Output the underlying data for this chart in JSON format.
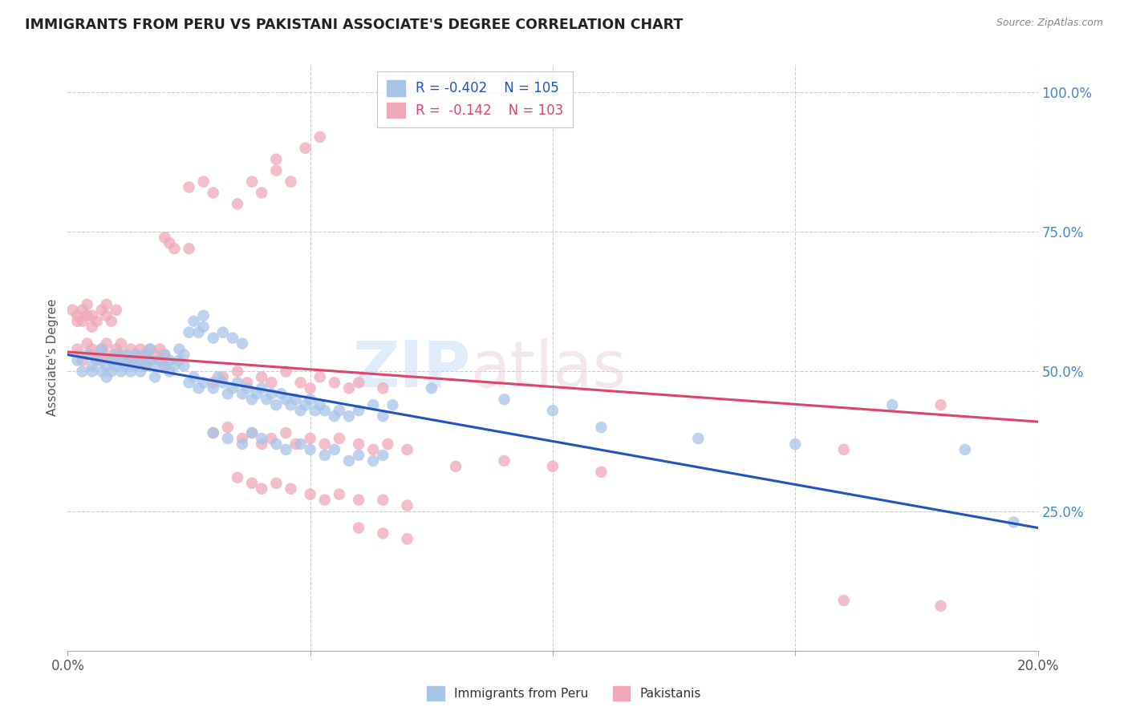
{
  "title": "IMMIGRANTS FROM PERU VS PAKISTANI ASSOCIATE'S DEGREE CORRELATION CHART",
  "source": "Source: ZipAtlas.com",
  "ylabel": "Associate's Degree",
  "legend_blue_label": "Immigrants from Peru",
  "legend_pink_label": "Pakistanis",
  "legend_blue_r_val": "-0.402",
  "legend_blue_n_val": "105",
  "legend_pink_r_val": "-0.142",
  "legend_pink_n_val": "103",
  "blue_color": "#a8c4e8",
  "pink_color": "#f0a8b8",
  "blue_line_color": "#2255bb",
  "pink_line_color": "#dd4466",
  "watermark_zip": "ZIP",
  "watermark_atlas": "atlas",
  "bg_color": "#ffffff",
  "grid_color": "#cccccc",
  "right_axis_color": "#4488cc",
  "title_color": "#222222",
  "blue_scatter": [
    [
      0.002,
      52
    ],
    [
      0.003,
      50
    ],
    [
      0.004,
      53
    ],
    [
      0.005,
      51
    ],
    [
      0.005,
      50
    ],
    [
      0.006,
      52
    ],
    [
      0.007,
      50
    ],
    [
      0.007,
      54
    ],
    [
      0.008,
      51
    ],
    [
      0.008,
      49
    ],
    [
      0.009,
      52
    ],
    [
      0.009,
      50
    ],
    [
      0.01,
      53
    ],
    [
      0.01,
      51
    ],
    [
      0.011,
      52
    ],
    [
      0.011,
      50
    ],
    [
      0.012,
      51
    ],
    [
      0.012,
      53
    ],
    [
      0.013,
      52
    ],
    [
      0.013,
      50
    ],
    [
      0.014,
      51
    ],
    [
      0.014,
      53
    ],
    [
      0.015,
      52
    ],
    [
      0.015,
      50
    ],
    [
      0.016,
      51
    ],
    [
      0.016,
      53
    ],
    [
      0.017,
      52
    ],
    [
      0.017,
      54
    ],
    [
      0.018,
      51
    ],
    [
      0.018,
      49
    ],
    [
      0.019,
      52
    ],
    [
      0.02,
      51
    ],
    [
      0.02,
      53
    ],
    [
      0.021,
      52
    ],
    [
      0.021,
      50
    ],
    [
      0.022,
      51
    ],
    [
      0.023,
      52
    ],
    [
      0.023,
      54
    ],
    [
      0.024,
      53
    ],
    [
      0.024,
      51
    ],
    [
      0.025,
      57
    ],
    [
      0.026,
      59
    ],
    [
      0.027,
      57
    ],
    [
      0.028,
      58
    ],
    [
      0.028,
      60
    ],
    [
      0.03,
      56
    ],
    [
      0.032,
      57
    ],
    [
      0.034,
      56
    ],
    [
      0.036,
      55
    ],
    [
      0.025,
      48
    ],
    [
      0.026,
      49
    ],
    [
      0.027,
      47
    ],
    [
      0.028,
      48
    ],
    [
      0.03,
      47
    ],
    [
      0.031,
      49
    ],
    [
      0.032,
      48
    ],
    [
      0.033,
      46
    ],
    [
      0.034,
      47
    ],
    [
      0.035,
      48
    ],
    [
      0.036,
      46
    ],
    [
      0.037,
      47
    ],
    [
      0.038,
      45
    ],
    [
      0.039,
      46
    ],
    [
      0.04,
      47
    ],
    [
      0.041,
      45
    ],
    [
      0.042,
      46
    ],
    [
      0.043,
      44
    ],
    [
      0.044,
      46
    ],
    [
      0.045,
      45
    ],
    [
      0.046,
      44
    ],
    [
      0.047,
      45
    ],
    [
      0.048,
      43
    ],
    [
      0.049,
      44
    ],
    [
      0.05,
      45
    ],
    [
      0.051,
      43
    ],
    [
      0.052,
      44
    ],
    [
      0.053,
      43
    ],
    [
      0.055,
      42
    ],
    [
      0.056,
      43
    ],
    [
      0.058,
      42
    ],
    [
      0.06,
      43
    ],
    [
      0.063,
      44
    ],
    [
      0.065,
      42
    ],
    [
      0.067,
      44
    ],
    [
      0.03,
      39
    ],
    [
      0.033,
      38
    ],
    [
      0.036,
      37
    ],
    [
      0.038,
      39
    ],
    [
      0.04,
      38
    ],
    [
      0.043,
      37
    ],
    [
      0.045,
      36
    ],
    [
      0.048,
      37
    ],
    [
      0.05,
      36
    ],
    [
      0.053,
      35
    ],
    [
      0.055,
      36
    ],
    [
      0.058,
      34
    ],
    [
      0.06,
      35
    ],
    [
      0.063,
      34
    ],
    [
      0.065,
      35
    ],
    [
      0.075,
      47
    ],
    [
      0.09,
      45
    ],
    [
      0.1,
      43
    ],
    [
      0.11,
      40
    ],
    [
      0.13,
      38
    ],
    [
      0.15,
      37
    ],
    [
      0.17,
      44
    ],
    [
      0.185,
      36
    ],
    [
      0.195,
      23
    ]
  ],
  "pink_scatter": [
    [
      0.002,
      54
    ],
    [
      0.003,
      52
    ],
    [
      0.004,
      55
    ],
    [
      0.005,
      53
    ],
    [
      0.005,
      54
    ],
    [
      0.006,
      52
    ],
    [
      0.007,
      54
    ],
    [
      0.007,
      52
    ],
    [
      0.008,
      53
    ],
    [
      0.008,
      55
    ],
    [
      0.009,
      52
    ],
    [
      0.01,
      54
    ],
    [
      0.01,
      52
    ],
    [
      0.011,
      53
    ],
    [
      0.011,
      55
    ],
    [
      0.012,
      52
    ],
    [
      0.013,
      54
    ],
    [
      0.013,
      52
    ],
    [
      0.014,
      53
    ],
    [
      0.015,
      54
    ],
    [
      0.015,
      52
    ],
    [
      0.016,
      53
    ],
    [
      0.016,
      51
    ],
    [
      0.017,
      52
    ],
    [
      0.017,
      54
    ],
    [
      0.018,
      53
    ],
    [
      0.019,
      52
    ],
    [
      0.019,
      54
    ],
    [
      0.02,
      53
    ],
    [
      0.02,
      51
    ],
    [
      0.001,
      61
    ],
    [
      0.002,
      59
    ],
    [
      0.002,
      60
    ],
    [
      0.003,
      61
    ],
    [
      0.003,
      59
    ],
    [
      0.004,
      60
    ],
    [
      0.004,
      62
    ],
    [
      0.005,
      60
    ],
    [
      0.005,
      58
    ],
    [
      0.006,
      59
    ],
    [
      0.007,
      61
    ],
    [
      0.008,
      60
    ],
    [
      0.008,
      62
    ],
    [
      0.009,
      59
    ],
    [
      0.01,
      61
    ],
    [
      0.02,
      74
    ],
    [
      0.021,
      73
    ],
    [
      0.022,
      72
    ],
    [
      0.025,
      72
    ],
    [
      0.025,
      83
    ],
    [
      0.028,
      84
    ],
    [
      0.03,
      82
    ],
    [
      0.035,
      80
    ],
    [
      0.038,
      84
    ],
    [
      0.04,
      82
    ],
    [
      0.043,
      86
    ],
    [
      0.043,
      88
    ],
    [
      0.046,
      84
    ],
    [
      0.049,
      90
    ],
    [
      0.052,
      92
    ],
    [
      0.03,
      48
    ],
    [
      0.032,
      49
    ],
    [
      0.035,
      50
    ],
    [
      0.037,
      48
    ],
    [
      0.04,
      49
    ],
    [
      0.042,
      48
    ],
    [
      0.045,
      50
    ],
    [
      0.048,
      48
    ],
    [
      0.05,
      47
    ],
    [
      0.052,
      49
    ],
    [
      0.055,
      48
    ],
    [
      0.058,
      47
    ],
    [
      0.06,
      48
    ],
    [
      0.065,
      47
    ],
    [
      0.03,
      39
    ],
    [
      0.033,
      40
    ],
    [
      0.036,
      38
    ],
    [
      0.038,
      39
    ],
    [
      0.04,
      37
    ],
    [
      0.042,
      38
    ],
    [
      0.045,
      39
    ],
    [
      0.047,
      37
    ],
    [
      0.05,
      38
    ],
    [
      0.053,
      37
    ],
    [
      0.056,
      38
    ],
    [
      0.06,
      37
    ],
    [
      0.063,
      36
    ],
    [
      0.066,
      37
    ],
    [
      0.07,
      36
    ],
    [
      0.035,
      31
    ],
    [
      0.038,
      30
    ],
    [
      0.04,
      29
    ],
    [
      0.043,
      30
    ],
    [
      0.046,
      29
    ],
    [
      0.05,
      28
    ],
    [
      0.053,
      27
    ],
    [
      0.056,
      28
    ],
    [
      0.06,
      27
    ],
    [
      0.065,
      27
    ],
    [
      0.07,
      26
    ],
    [
      0.08,
      33
    ],
    [
      0.09,
      34
    ],
    [
      0.1,
      33
    ],
    [
      0.11,
      32
    ],
    [
      0.16,
      36
    ],
    [
      0.18,
      44
    ],
    [
      0.06,
      22
    ],
    [
      0.065,
      21
    ],
    [
      0.07,
      20
    ],
    [
      0.16,
      9
    ],
    [
      0.18,
      8
    ]
  ],
  "xlim": [
    0.0,
    0.2
  ],
  "ylim": [
    0.0,
    105.0
  ],
  "blue_trendline_x": [
    0.0,
    0.2
  ],
  "blue_trendline_y": [
    53.0,
    22.0
  ],
  "pink_trendline_x": [
    0.0,
    0.2
  ],
  "pink_trendline_y": [
    53.5,
    41.0
  ],
  "xticks": [
    0.0,
    0.05,
    0.1,
    0.15,
    0.2
  ],
  "xtick_labels": [
    "0.0%",
    "",
    "",
    "",
    "20.0%"
  ],
  "yticks_right": [
    25.0,
    50.0,
    75.0,
    100.0
  ],
  "ytick_labels_right": [
    "25.0%",
    "50.0%",
    "75.0%",
    "100.0%"
  ],
  "grid_hlines": [
    25.0,
    50.0,
    75.0,
    100.0
  ],
  "grid_vlines": [
    0.05,
    0.1,
    0.15,
    0.2
  ]
}
